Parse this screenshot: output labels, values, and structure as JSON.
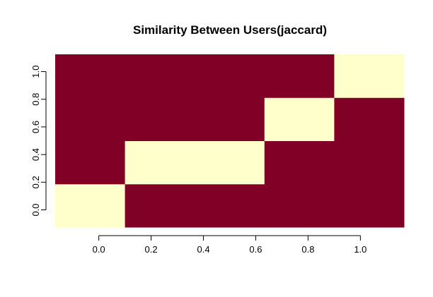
{
  "chart_data": {
    "type": "heatmap",
    "title": "Similarity Between Users(jaccard)",
    "xlabel": "",
    "ylabel": "",
    "x_tick_labels": [
      "0.0",
      "0.2",
      "0.4",
      "0.6",
      "0.8",
      "1.0"
    ],
    "x_tick_values": [
      0.0,
      0.2,
      0.4,
      0.6,
      0.8,
      1.0
    ],
    "y_tick_labels": [
      "0.0",
      "0.2",
      "0.4",
      "0.6",
      "0.8",
      "1.0"
    ],
    "y_tick_values": [
      0.0,
      0.2,
      0.4,
      0.6,
      0.8,
      1.0
    ],
    "xlim": [
      -0.1667,
      1.1667
    ],
    "ylim": [
      -0.125,
      1.125
    ],
    "n_cols": 4,
    "n_rows": 5,
    "values": [
      [
        1,
        0,
        0,
        0
      ],
      [
        0,
        1,
        0,
        0
      ],
      [
        0,
        1,
        0,
        0
      ],
      [
        0,
        0,
        1,
        0
      ],
      [
        0,
        0,
        0,
        1
      ]
    ],
    "colors": {
      "low": "#800026",
      "high": "#FFFFCC"
    },
    "grid": false
  }
}
